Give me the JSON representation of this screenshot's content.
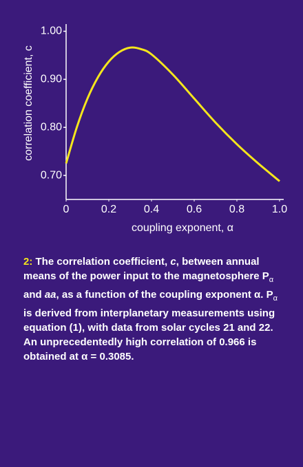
{
  "chart_data": {
    "type": "line",
    "y_label": "correlation coefficient, c",
    "x_label": "coupling exponent, α",
    "x": [
      0,
      0.05,
      0.1,
      0.15,
      0.2,
      0.25,
      0.3,
      0.35,
      0.4,
      0.5,
      0.6,
      0.7,
      0.8,
      0.9,
      1.0
    ],
    "values": [
      0.725,
      0.8,
      0.86,
      0.905,
      0.937,
      0.957,
      0.966,
      0.963,
      0.952,
      0.91,
      0.86,
      0.81,
      0.765,
      0.725,
      0.688
    ],
    "color": "#f5e61c",
    "xlim": [
      0,
      1
    ],
    "ylim": [
      0.65,
      1.015
    ],
    "xticks": [
      0,
      0.2,
      0.4,
      0.6,
      0.8,
      {
        "value": 1,
        "label": "1.0"
      }
    ],
    "yticks": [
      {
        "value": 0.7,
        "label": "0.70"
      },
      {
        "value": 0.8,
        "label": "0.80"
      },
      {
        "value": 0.9,
        "label": "0.90"
      },
      {
        "value": 1,
        "label": "1.00"
      }
    ]
  },
  "caption": {
    "label": "2:",
    "segments": [
      "The correlation coefficient, ",
      "c",
      ", between annual means of the power input to the magnetosphere P",
      "α",
      " and ",
      "aa",
      ", as a function of the coupling exponent α. P",
      "α",
      " is derived from interplanetary measurements using equation (1), with data from solar cycles 21 and 22. An unprecedentedly high correlation of 0.966 is obtained at α = 0.3085."
    ]
  }
}
